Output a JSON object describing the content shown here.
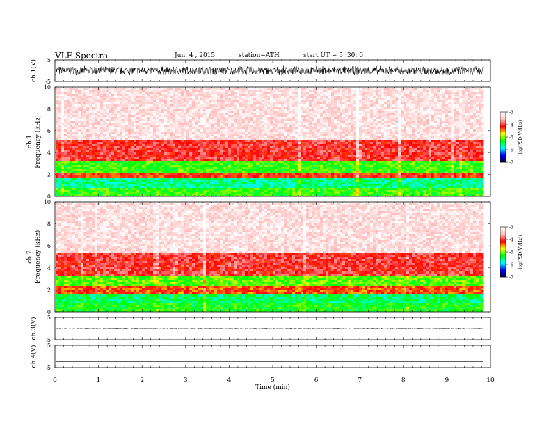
{
  "header": {
    "title": "VLF Spectra",
    "date": "Jun. 4 , 2015",
    "station": "station=ATH",
    "start": "start UT = 5 :30: 0"
  },
  "colors": {
    "spectrum_colormap": [
      "#000033",
      "#0000ff",
      "#00ffff",
      "#00ff00",
      "#ffff00",
      "#ff0000",
      "#ffc0c0",
      "#ffffff"
    ],
    "trace": "#000000"
  },
  "chart_data": [
    {
      "type": "line",
      "ylabel": "ch.1(V)",
      "ylim": [
        -5,
        5
      ],
      "yticks": [
        "5",
        "-5"
      ],
      "amplitude_peak_to_peak": 4.5
    },
    {
      "type": "heatmap",
      "ylabel": "ch.1 Frequency (kHz)",
      "ylim": [
        0,
        10
      ],
      "yticks": [
        "0",
        "2",
        "4",
        "6",
        "8",
        "10"
      ],
      "colorbar": {
        "label": "log(PSD(V²/Hz))",
        "range": [
          -7,
          -3
        ],
        "ticks": [
          "-3",
          "-4",
          "-5",
          "-6",
          "-7"
        ]
      },
      "bands_khz_log_psd": [
        [
          0,
          0.9,
          -5.2
        ],
        [
          0.9,
          1.8,
          -5.6
        ],
        [
          1.8,
          2.2,
          -4.2
        ],
        [
          2.2,
          3.4,
          -5.2
        ],
        [
          3.4,
          5.2,
          -4.0
        ],
        [
          5.2,
          10,
          -3.3
        ]
      ]
    },
    {
      "type": "heatmap",
      "ylabel": "ch.2 Frequency (kHz)",
      "ylim": [
        0,
        10
      ],
      "yticks": [
        "0",
        "2",
        "4",
        "6",
        "8",
        "10"
      ],
      "colorbar": {
        "label": "log(PSD(V²/Hz))",
        "range": [
          -7,
          -3
        ],
        "ticks": [
          "-3",
          "-4",
          "-5",
          "-6",
          "-7"
        ]
      },
      "bands_khz_log_psd": [
        [
          0,
          1.0,
          -5.3
        ],
        [
          1.0,
          1.7,
          -5.5
        ],
        [
          1.7,
          2.4,
          -4.3
        ],
        [
          2.4,
          3.3,
          -5.1
        ],
        [
          3.3,
          5.4,
          -4.0
        ],
        [
          5.4,
          10,
          -3.3
        ]
      ]
    },
    {
      "type": "line",
      "ylabel": "ch.3(V)",
      "ylim": [
        -5,
        5
      ],
      "yticks": [
        "5",
        "-5"
      ],
      "level": 0
    },
    {
      "type": "line",
      "ylabel": "ch.4(V)",
      "ylim": [
        -5,
        5
      ],
      "yticks": [
        "5",
        "-5"
      ],
      "level": -2.3
    },
    {
      "type": "axis",
      "xlabel": "Time (min)",
      "xlim": [
        0,
        10
      ],
      "data_end_min": 9.83,
      "xticks": [
        "0",
        "1",
        "2",
        "3",
        "4",
        "5",
        "6",
        "7",
        "8",
        "9",
        "10"
      ]
    }
  ]
}
